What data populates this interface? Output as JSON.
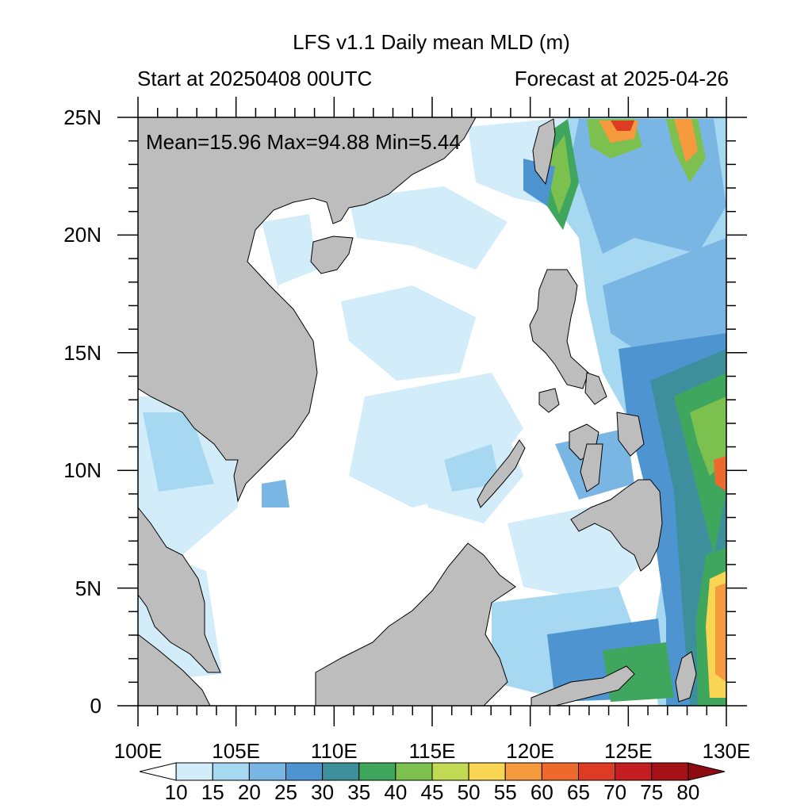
{
  "title": "LFS v1.1 Daily mean MLD (m)",
  "subtitle_left": "Start at 20250408 00UTC",
  "subtitle_right": "Forecast at 2025-04-26",
  "stats": "Mean=15.96  Max=94.88  Min=5.44",
  "map": {
    "lon_range": [
      100,
      130
    ],
    "lat_range": [
      0,
      25
    ],
    "lat_ticks": [
      {
        "value": 25,
        "label": "25N"
      },
      {
        "value": 20,
        "label": "20N"
      },
      {
        "value": 15,
        "label": "15N"
      },
      {
        "value": 10,
        "label": "10N"
      },
      {
        "value": 5,
        "label": "5N"
      },
      {
        "value": 0,
        "label": "0"
      }
    ],
    "lon_ticks": [
      {
        "value": 100,
        "label": "100E"
      },
      {
        "value": 105,
        "label": "105E"
      },
      {
        "value": 110,
        "label": "110E"
      },
      {
        "value": 115,
        "label": "115E"
      },
      {
        "value": 120,
        "label": "120E"
      },
      {
        "value": 125,
        "label": "125E"
      },
      {
        "value": 130,
        "label": "130E"
      }
    ],
    "land_color": "#bdbdbd",
    "ocean_base_color": "#ffffff"
  },
  "colorbar": {
    "levels": [
      "10",
      "15",
      "20",
      "25",
      "30",
      "35",
      "40",
      "45",
      "50",
      "55",
      "60",
      "65",
      "70",
      "75",
      "80"
    ],
    "colors": [
      "#ffffff",
      "#d2ecf9",
      "#a6d8f2",
      "#7ab6e3",
      "#4d94d1",
      "#3e8f9c",
      "#3fa65e",
      "#7cc04f",
      "#c2d954",
      "#f8d553",
      "#f59a3d",
      "#ee6a2c",
      "#dd3b24",
      "#c41e22",
      "#a61218",
      "#8e0b12"
    ]
  }
}
